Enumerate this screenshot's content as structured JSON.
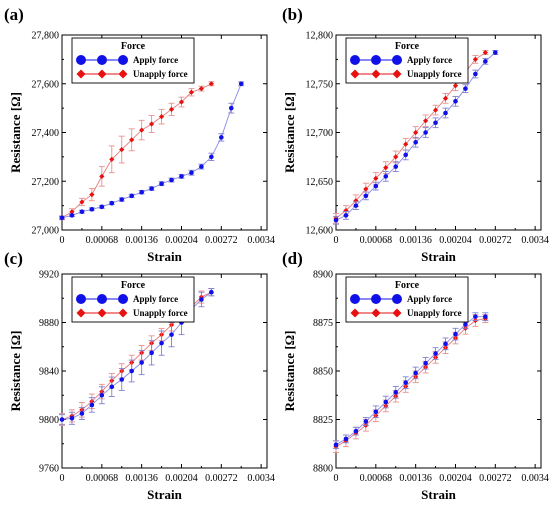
{
  "figure": {
    "panels": [
      {
        "label": "(a)",
        "xlabel": "Strain",
        "ylabel": "Resistance [Ω]",
        "xticks": [
          "0",
          "0.00068",
          "0.00136",
          "0.00204",
          "0.00272",
          "0.0034"
        ],
        "yticks": [
          "27,000",
          "27,200",
          "27,400",
          "27,600",
          "27,800"
        ],
        "legend": {
          "title": "Force",
          "entries": [
            "Apply force",
            "Unapply force"
          ]
        }
      },
      {
        "label": "(b)",
        "xlabel": "Strain",
        "ylabel": "Resistance [Ω]",
        "xticks": [
          "0",
          "0.00068",
          "0.00136",
          "0.00204",
          "0.00272",
          "0.0034"
        ],
        "yticks": [
          "12,600",
          "12,650",
          "12,700",
          "12,750",
          "12,800"
        ],
        "legend": {
          "title": "Force",
          "entries": [
            "Apply force",
            "Unapply force"
          ]
        }
      },
      {
        "label": "(c)",
        "xlabel": "Strain",
        "ylabel": "Resistance [Ω]",
        "xticks": [
          "0",
          "0.00068",
          "0.00136",
          "0.00204",
          "0.00272",
          "0.0034"
        ],
        "yticks": [
          "9760",
          "9800",
          "9840",
          "9880",
          "9920"
        ],
        "legend": {
          "title": "Force",
          "entries": [
            "Apply force",
            "Unapply force"
          ]
        }
      },
      {
        "label": "(d)",
        "xlabel": "Strain",
        "ylabel": "Resistance [Ω]",
        "xticks": [
          "0",
          "0.00068",
          "0.00136",
          "0.00204",
          "0.00272",
          "0.0034"
        ],
        "yticks": [
          "8800",
          "8825",
          "8850",
          "8875",
          "8900"
        ],
        "legend": {
          "title": "Force",
          "entries": [
            "Apply force",
            "Unapply force"
          ]
        }
      }
    ]
  },
  "chart_data": [
    {
      "type": "line",
      "panel": "(a)",
      "xlabel": "Strain",
      "ylabel": "Resistance [Ω]",
      "xlim": [
        0,
        0.0035
      ],
      "ylim": [
        27000,
        27800
      ],
      "legend_position": "top-left",
      "colors": {
        "apply": "#1010e8",
        "unapply": "#e81010",
        "apply_line": "#8a8ae6",
        "unapply_line": "#e87a7a",
        "unapply_error": "#e89090",
        "apply_error": "#8080d0"
      },
      "x": [
        0,
        0.00017,
        0.00034,
        0.00051,
        0.00068,
        0.00085,
        0.00102,
        0.00119,
        0.00136,
        0.00153,
        0.0017,
        0.00187,
        0.00204,
        0.00221,
        0.00238,
        0.00255,
        0.00272,
        0.00289,
        0.00306,
        0.00323
      ],
      "series": [
        {
          "name": "Apply force",
          "values": [
            27050,
            27060,
            27075,
            27085,
            27095,
            27110,
            27125,
            27140,
            27155,
            27170,
            27190,
            27205,
            27220,
            27235,
            27260,
            27300,
            27380,
            27500,
            27600,
            null
          ],
          "errors": [
            5,
            5,
            6,
            6,
            6,
            6,
            7,
            7,
            7,
            7,
            8,
            8,
            8,
            10,
            10,
            15,
            15,
            20,
            8,
            null
          ]
        },
        {
          "name": "Unapply force",
          "values": [
            27050,
            27075,
            27115,
            27145,
            27220,
            27290,
            27330,
            27370,
            27410,
            27435,
            27465,
            27495,
            27525,
            27565,
            27580,
            27600,
            null,
            null,
            null,
            null
          ],
          "errors": [
            8,
            12,
            15,
            25,
            40,
            55,
            55,
            45,
            40,
            35,
            30,
            25,
            20,
            15,
            10,
            8,
            null,
            null,
            null,
            null
          ]
        }
      ]
    },
    {
      "type": "line",
      "panel": "(b)",
      "xlabel": "Strain",
      "ylabel": "Resistance [Ω]",
      "xlim": [
        0,
        0.0035
      ],
      "ylim": [
        12600,
        12800
      ],
      "legend_position": "top-left",
      "x": [
        0,
        0.00017,
        0.00034,
        0.00051,
        0.00068,
        0.00085,
        0.00102,
        0.00119,
        0.00136,
        0.00153,
        0.0017,
        0.00187,
        0.00204,
        0.00221,
        0.00238,
        0.00255,
        0.00272,
        0.00289,
        0.00306,
        0.00323
      ],
      "series": [
        {
          "name": "Apply force",
          "values": [
            12610,
            12615,
            12625,
            12635,
            12645,
            12655,
            12665,
            12677,
            12690,
            12700,
            12710,
            12720,
            12732,
            12745,
            12760,
            12773,
            12782,
            null,
            null,
            null
          ],
          "errors": [
            4,
            4,
            4,
            4,
            4,
            5,
            5,
            5,
            5,
            5,
            5,
            5,
            5,
            4,
            4,
            3,
            2,
            null,
            null,
            null
          ]
        },
        {
          "name": "Unapply force",
          "values": [
            12612,
            12620,
            12630,
            12642,
            12653,
            12664,
            12675,
            12688,
            12700,
            12712,
            12723,
            12735,
            12748,
            12762,
            12775,
            12782,
            null,
            null,
            null,
            null
          ],
          "errors": [
            5,
            5,
            6,
            6,
            6,
            6,
            6,
            6,
            6,
            6,
            5,
            5,
            5,
            4,
            4,
            2,
            null,
            null,
            null,
            null
          ]
        }
      ]
    },
    {
      "type": "line",
      "panel": "(c)",
      "xlabel": "Strain",
      "ylabel": "Resistance [Ω]",
      "xlim": [
        0,
        0.0035
      ],
      "ylim": [
        9760,
        9920
      ],
      "legend_position": "top-left",
      "x": [
        0,
        0.00017,
        0.00034,
        0.00051,
        0.00068,
        0.00085,
        0.00102,
        0.00119,
        0.00136,
        0.00153,
        0.0017,
        0.00187,
        0.00204,
        0.00221,
        0.00238,
        0.00255,
        0.00272,
        0.00289,
        0.00306,
        0.00323
      ],
      "series": [
        {
          "name": "Apply force",
          "values": [
            9800,
            9801,
            9805,
            9812,
            9820,
            9827,
            9833,
            9840,
            9847,
            9855,
            9863,
            9870,
            9880,
            9891,
            9899,
            9905,
            null,
            null,
            null,
            null
          ],
          "errors": [
            4,
            5,
            5,
            6,
            7,
            8,
            9,
            9,
            10,
            10,
            10,
            10,
            10,
            8,
            6,
            3,
            null,
            null,
            null,
            null
          ]
        },
        {
          "name": "Unapply force",
          "values": [
            9800,
            9803,
            9808,
            9815,
            9823,
            9832,
            9840,
            9847,
            9855,
            9863,
            9870,
            9878,
            9885,
            9893,
            9901,
            9905,
            null,
            null,
            null,
            null
          ],
          "errors": [
            5,
            5,
            6,
            6,
            6,
            6,
            6,
            6,
            6,
            6,
            5,
            5,
            5,
            5,
            5,
            3,
            null,
            null,
            null,
            null
          ]
        }
      ]
    },
    {
      "type": "line",
      "panel": "(d)",
      "xlabel": "Strain",
      "ylabel": "Resistance [Ω]",
      "xlim": [
        0,
        0.0035
      ],
      "ylim": [
        8800,
        8900
      ],
      "legend_position": "top-left",
      "x": [
        0,
        0.00017,
        0.00034,
        0.00051,
        0.00068,
        0.00085,
        0.00102,
        0.00119,
        0.00136,
        0.00153,
        0.0017,
        0.00187,
        0.00204,
        0.00221,
        0.00238,
        0.00255,
        0.00272,
        0.00289,
        0.00306,
        0.00323
      ],
      "series": [
        {
          "name": "Apply force",
          "values": [
            8812,
            8815,
            8819,
            8824,
            8829,
            8834,
            8839,
            8844,
            8849,
            8854,
            8859,
            8864,
            8869,
            8874,
            8878,
            8878,
            null,
            null,
            null,
            null
          ],
          "errors": [
            2,
            2,
            2,
            2,
            3,
            3,
            3,
            3,
            3,
            3,
            3,
            3,
            3,
            2,
            2,
            2,
            null,
            null,
            null,
            null
          ]
        },
        {
          "name": "Unapply force",
          "values": [
            8811,
            8814,
            8818,
            8822,
            8827,
            8832,
            8837,
            8842,
            8847,
            8852,
            8857,
            8862,
            8867,
            8872,
            8876,
            8877,
            null,
            null,
            null,
            null
          ],
          "errors": [
            3,
            3,
            3,
            3,
            3,
            3,
            3,
            3,
            3,
            3,
            3,
            3,
            3,
            3,
            3,
            2,
            null,
            null,
            null,
            null
          ]
        }
      ]
    }
  ]
}
